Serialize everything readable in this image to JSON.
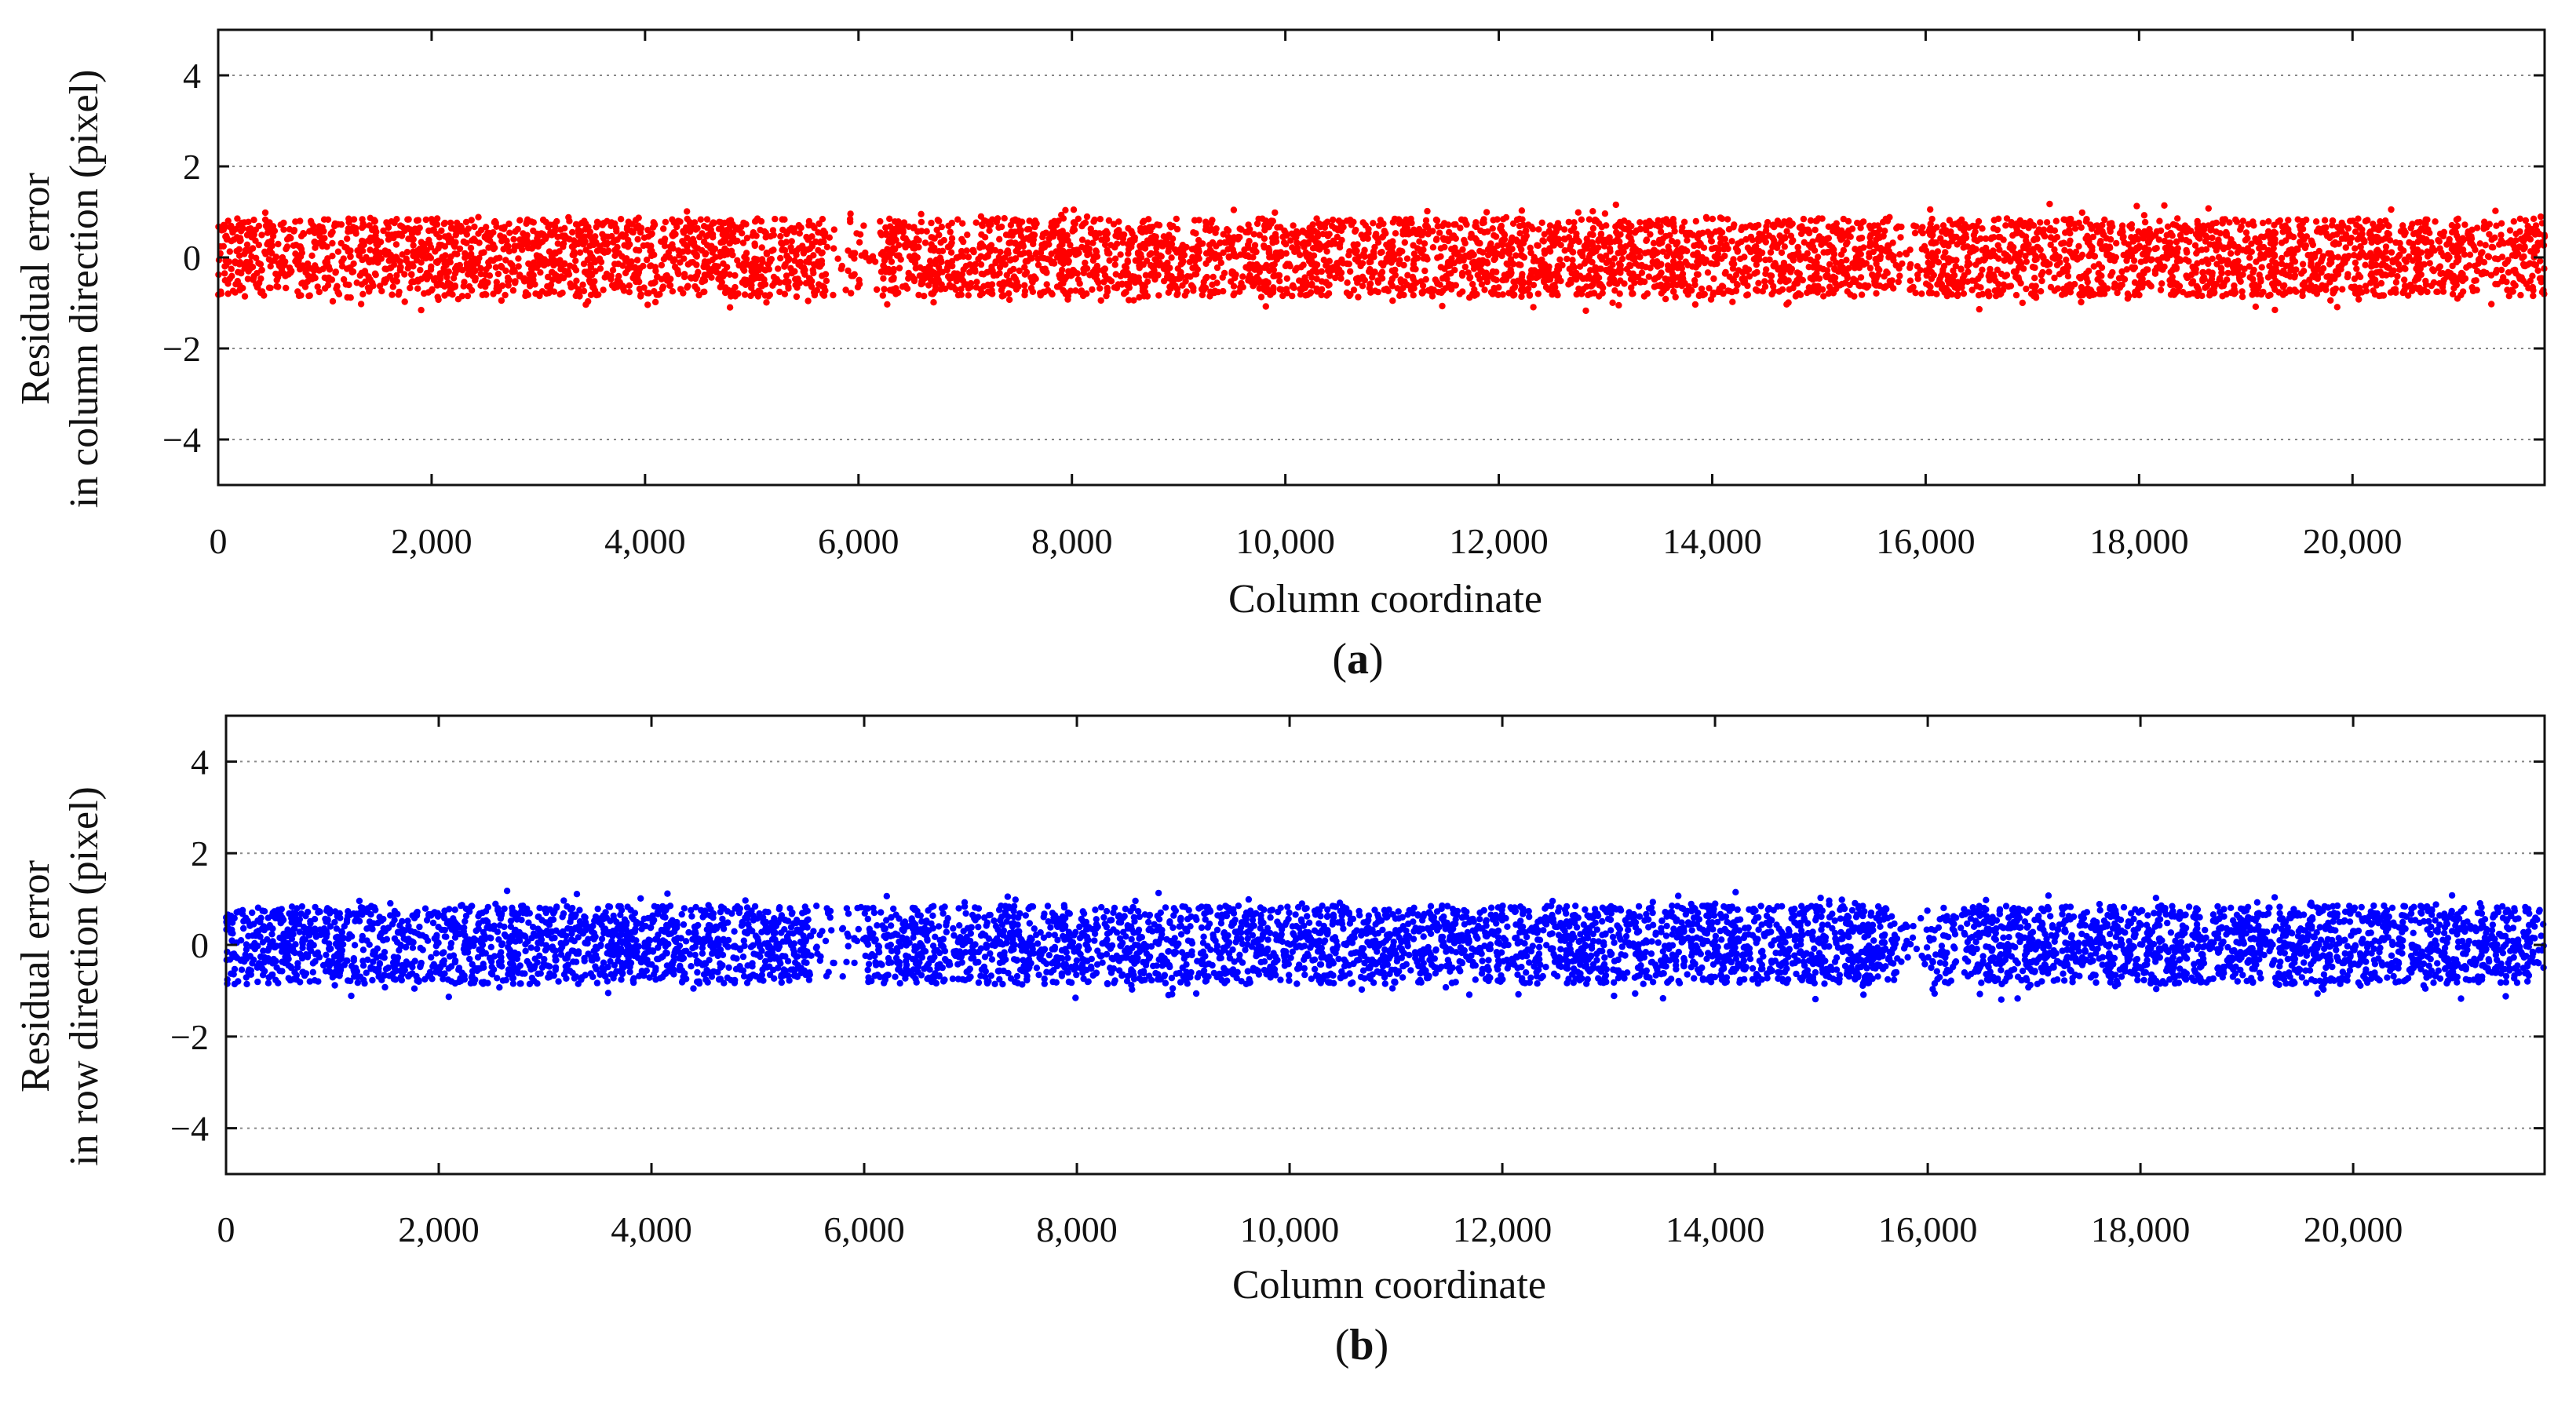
{
  "chart_data": [
    {
      "type": "scatter",
      "panel_id": "a",
      "caption_open": "(",
      "caption_letter": "a",
      "caption_close": ")",
      "xlabel": "Column coordinate",
      "ylabel_line1": "Residual error",
      "ylabel_line2": "in column direction (pixel)",
      "xlim": [
        0,
        21800
      ],
      "ylim": [
        -5,
        5
      ],
      "x_ticks": [
        0,
        2000,
        4000,
        6000,
        8000,
        10000,
        12000,
        14000,
        16000,
        18000,
        20000
      ],
      "x_tick_labels": [
        "0",
        "2,000",
        "4,000",
        "6,000",
        "8,000",
        "10,000",
        "12,000",
        "14,000",
        "16,000",
        "18,000",
        "20,000"
      ],
      "y_ticks": [
        -4,
        -2,
        0,
        2,
        4
      ],
      "y_tick_labels": [
        "−4",
        "−2",
        "0",
        "2",
        "4"
      ],
      "grid_y": true,
      "color": "#ff0000",
      "series": {
        "name": "Residual error in column direction",
        "x_range": [
          0,
          21800
        ],
        "center": 0.0,
        "typical_spread": [
          -0.9,
          0.9
        ],
        "max_abs": 1.2,
        "approx_point_count": 6000,
        "sparse_gaps": [
          [
            5700,
            6200
          ],
          [
            15700,
            16000
          ]
        ]
      }
    },
    {
      "type": "scatter",
      "panel_id": "b",
      "caption_open": "(",
      "caption_letter": "b",
      "caption_close": ")",
      "xlabel": "Column coordinate",
      "ylabel_line1": "Residual error",
      "ylabel_line2": "in row direction (pixel)",
      "xlim": [
        0,
        21800
      ],
      "ylim": [
        -5,
        5
      ],
      "x_ticks": [
        0,
        2000,
        4000,
        6000,
        8000,
        10000,
        12000,
        14000,
        16000,
        18000,
        20000
      ],
      "x_tick_labels": [
        "0",
        "2,000",
        "4,000",
        "6,000",
        "8,000",
        "10,000",
        "12,000",
        "14,000",
        "16,000",
        "18,000",
        "20,000"
      ],
      "y_ticks": [
        -4,
        -2,
        0,
        2,
        4
      ],
      "y_tick_labels": [
        "−4",
        "−2",
        "0",
        "2",
        "4"
      ],
      "grid_y": true,
      "color": "#0000ff",
      "series": {
        "name": "Residual error in row direction",
        "x_range": [
          0,
          21800
        ],
        "center": 0.0,
        "typical_spread": [
          -0.9,
          0.9
        ],
        "max_abs": 1.2,
        "approx_point_count": 6000,
        "sparse_gaps": [
          [
            5500,
            6000
          ],
          [
            15700,
            16100
          ]
        ]
      }
    }
  ]
}
